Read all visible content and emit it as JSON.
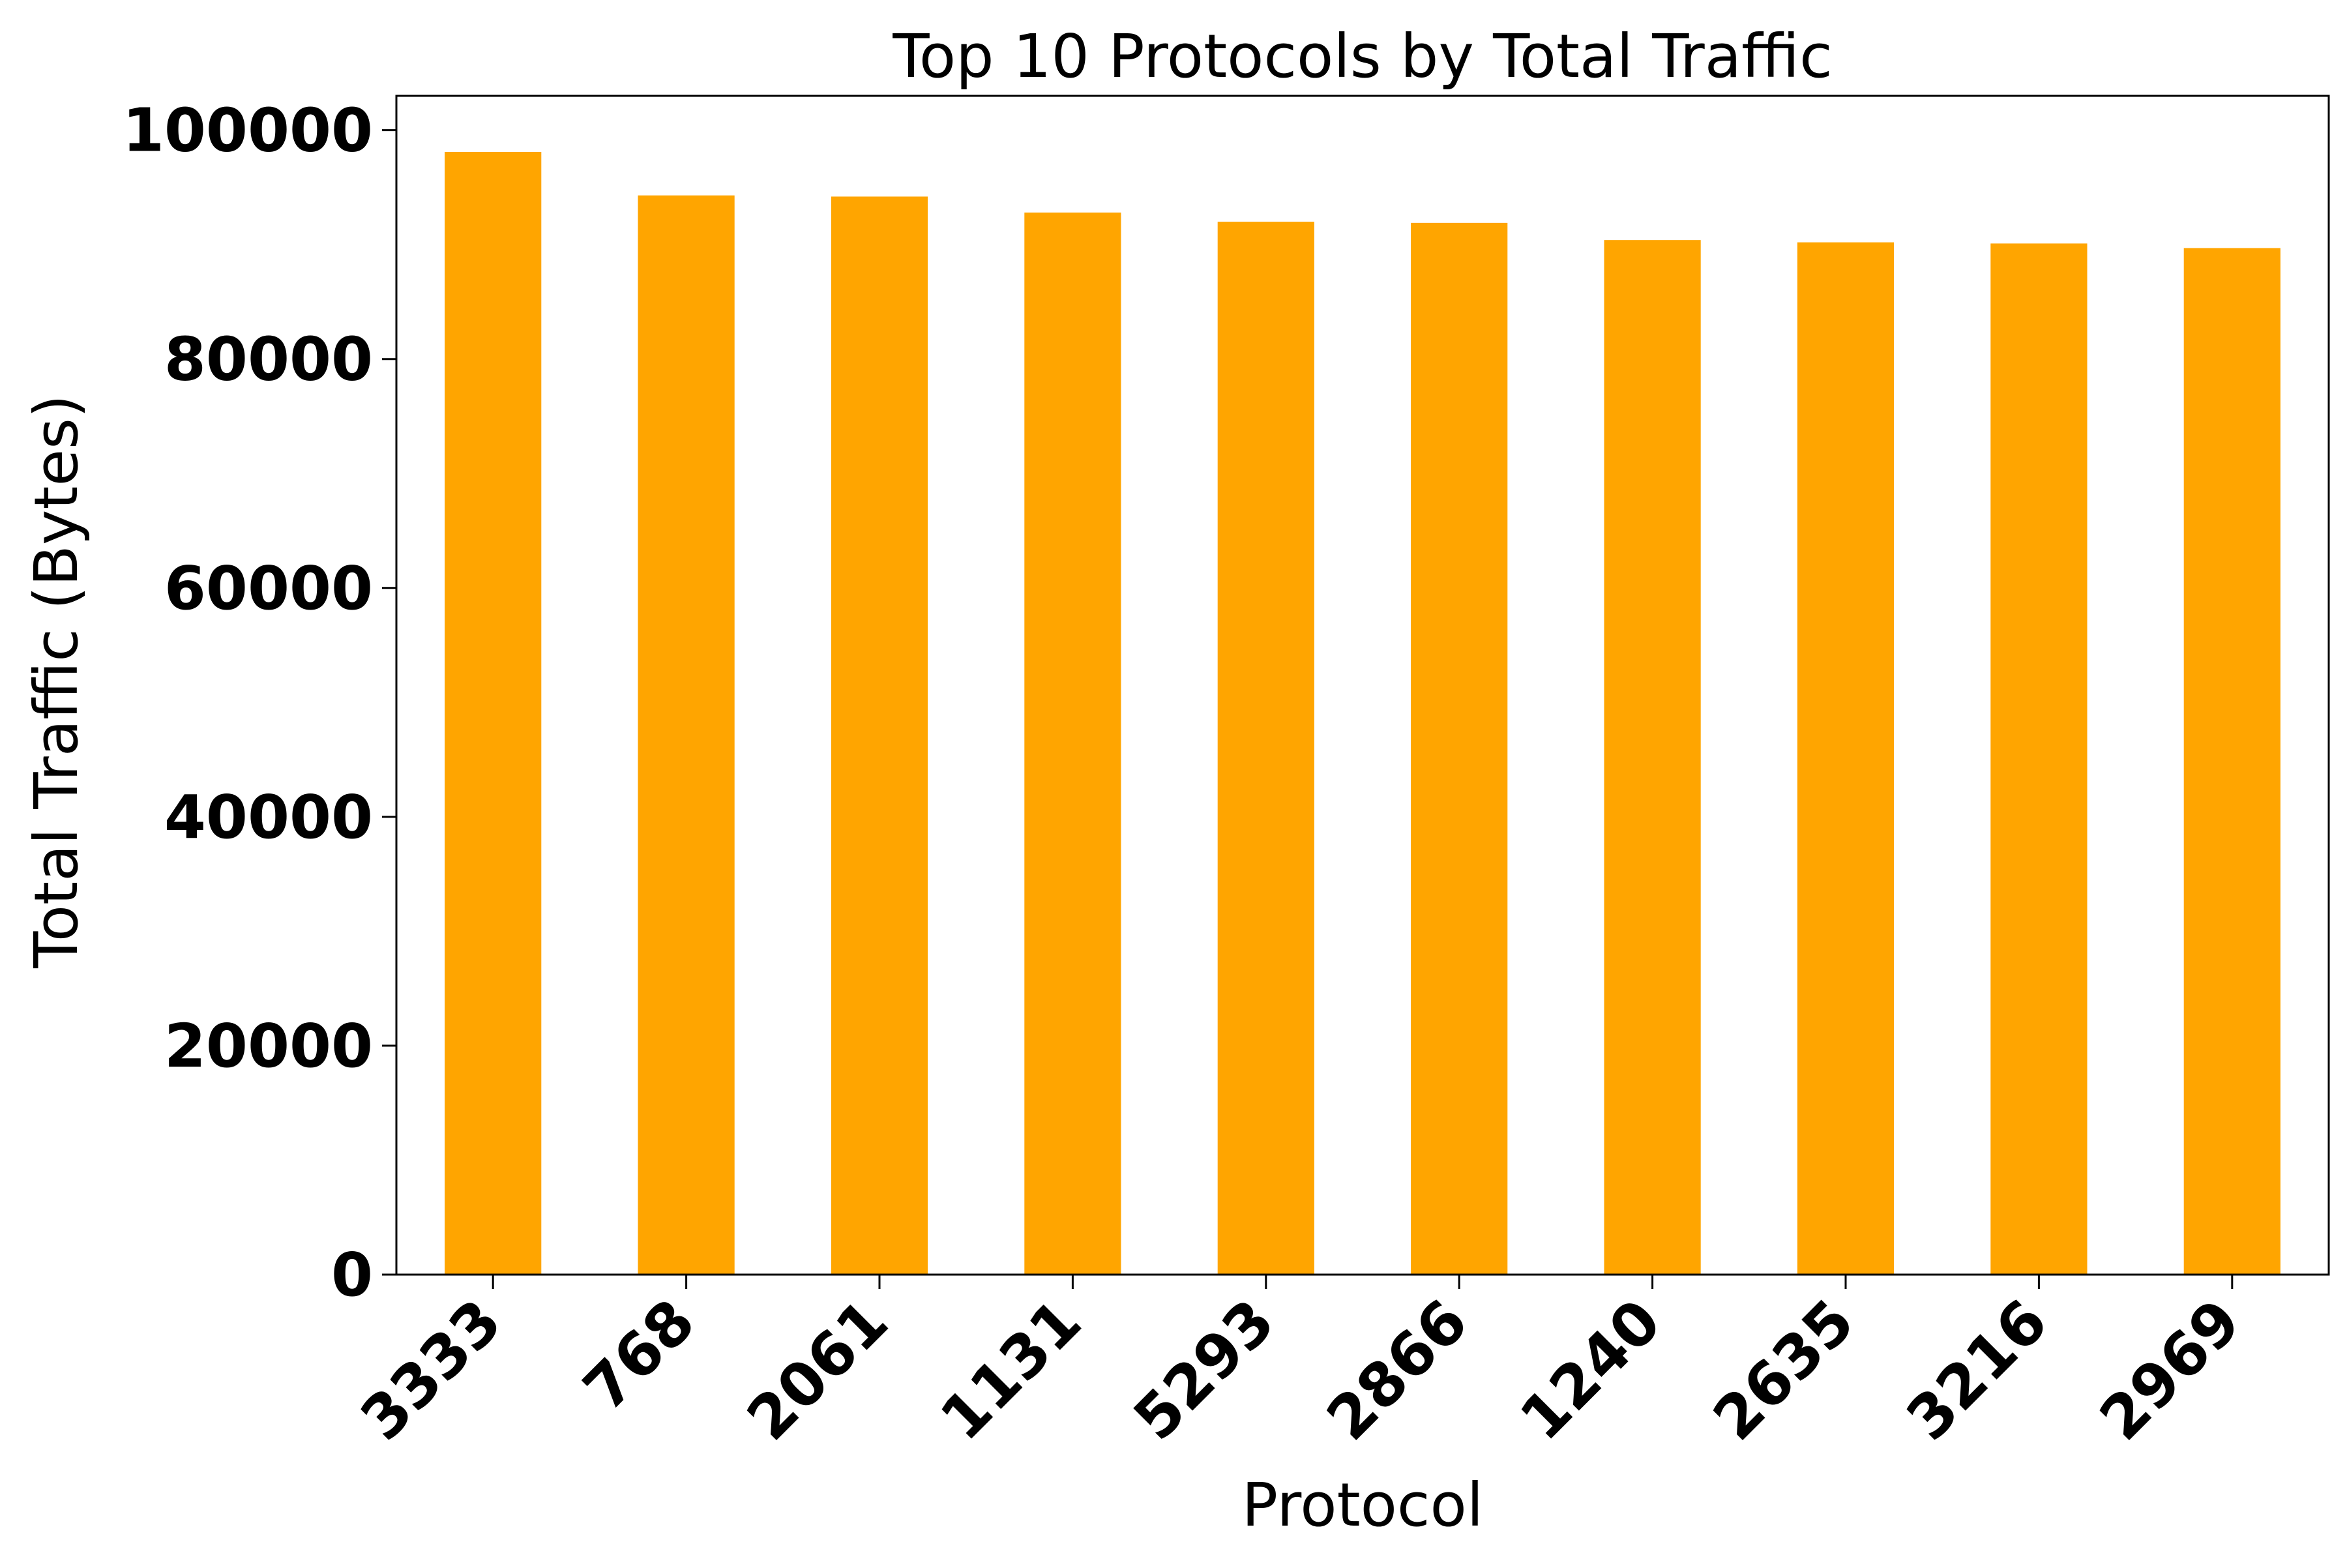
{
  "chart_data": {
    "type": "bar",
    "title": "Top 10 Protocols by Total Traffic",
    "xlabel": "Protocol",
    "ylabel": "Total Traffic (Bytes)",
    "categories": [
      "3333",
      "768",
      "2061",
      "1131",
      "5293",
      "2866",
      "1240",
      "2635",
      "3216",
      "2969"
    ],
    "values": [
      98100,
      94300,
      94200,
      92800,
      92000,
      91900,
      90400,
      90200,
      90100,
      89700
    ],
    "ylim": [
      0,
      103000
    ],
    "yticks": [
      0,
      20000,
      40000,
      60000,
      80000,
      100000
    ],
    "grid": false,
    "legend": "none",
    "colors": {
      "bar": "#ffa500",
      "axes": "#000000"
    }
  }
}
